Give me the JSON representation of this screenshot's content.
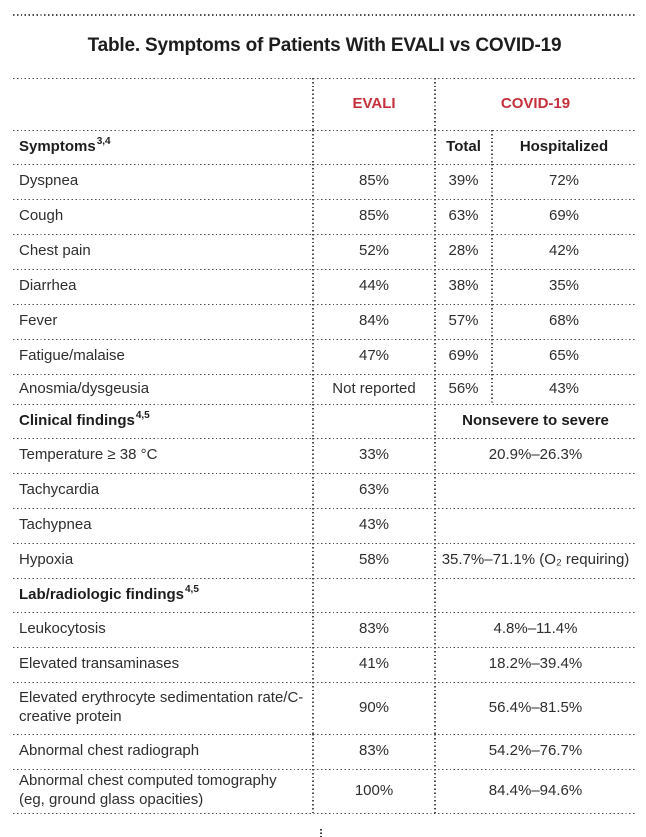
{
  "page": {
    "title": "Table. Symptoms of Patients With EVALI vs COVID-19"
  },
  "colors": {
    "accent_red": "#C4303B",
    "text": "#2E2E2E",
    "dotted_line": "#4C4C4C"
  },
  "columns": {
    "evali": "EVALI",
    "covid": "COVID-19",
    "total": "Total",
    "hospitalized": "Hospitalized"
  },
  "sections": {
    "symptoms": {
      "label": "Symptoms",
      "sup": "3,4",
      "rows": [
        {
          "label": "Dyspnea",
          "evali": "85%",
          "total": "39%",
          "hosp": "72%"
        },
        {
          "label": "Cough",
          "evali": "85%",
          "total": "63%",
          "hosp": "69%"
        },
        {
          "label": "Chest pain",
          "evali": "52%",
          "total": "28%",
          "hosp": "42%"
        },
        {
          "label": "Diarrhea",
          "evali": "44%",
          "total": "38%",
          "hosp": "35%"
        },
        {
          "label": "Fever",
          "evali": "84%",
          "total": "57%",
          "hosp": "68%"
        },
        {
          "label": "Fatigue/malaise",
          "evali": "47%",
          "total": "69%",
          "hosp": "65%"
        },
        {
          "label": "Anosmia/dysgeusia",
          "evali": "Not reported",
          "total": "56%",
          "hosp": "43%"
        }
      ]
    },
    "clinical": {
      "label": "Clinical findings",
      "sup": "4,5",
      "covid_header": "Nonsevere to severe",
      "rows": [
        {
          "label": "Temperature ≥ 38 °C",
          "evali": "33%",
          "covid": "20.9%–26.3%"
        },
        {
          "label": "Tachycardia",
          "evali": "63%",
          "covid": ""
        },
        {
          "label": "Tachypnea",
          "evali": "43%",
          "covid": ""
        },
        {
          "label": "Hypoxia",
          "evali": "58%",
          "covid": "35.7%–71.1% (O₂ requiring)"
        }
      ]
    },
    "lab": {
      "label": "Lab/radiologic findings",
      "sup": "4,5",
      "rows": [
        {
          "label": "Leukocytosis",
          "evali": "83%",
          "covid": "4.8%–11.4%"
        },
        {
          "label": "Elevated transaminases",
          "evali": "41%",
          "covid": "18.2%–39.4%"
        },
        {
          "label": "Elevated erythrocyte sedimentation rate/C-creative protein",
          "evali": "90%",
          "covid": "56.4%–81.5%"
        },
        {
          "label": "Abnormal chest radiograph",
          "evali": "83%",
          "covid": "54.2%–76.7%"
        },
        {
          "label": "Abnormal chest computed tomography (eg, ground glass opacities)",
          "evali": "100%",
          "covid": "84.4%–94.6%"
        }
      ]
    }
  }
}
